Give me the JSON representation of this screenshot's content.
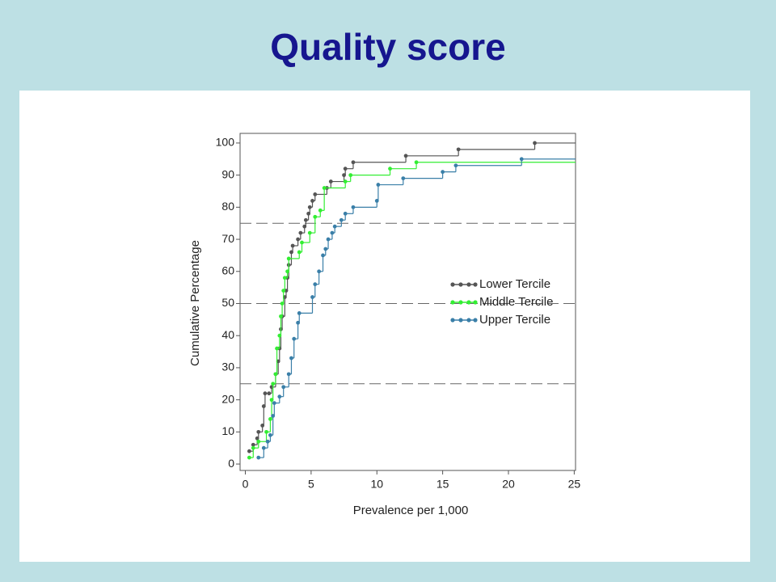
{
  "chart_data": {
    "type": "step",
    "title": "Quality score",
    "x_label": "Prevalence per 1,000",
    "y_label": "Cumulative Percentage",
    "xlim": [
      -0.4,
      25.1
    ],
    "ylim": [
      -2,
      103
    ],
    "xticks": [
      0,
      5,
      10,
      15,
      20,
      25
    ],
    "yticks": [
      0,
      10,
      20,
      30,
      40,
      50,
      60,
      70,
      80,
      90,
      100
    ],
    "reference_lines": [
      25,
      50,
      75
    ],
    "legend": "right",
    "series": [
      {
        "name": "Lower Tercile",
        "color": "#555555",
        "x": [
          0.3,
          0.6,
          0.9,
          1.0,
          1.3,
          1.4,
          1.5,
          1.8,
          2.0,
          2.3,
          2.5,
          2.6,
          2.7,
          2.8,
          3.0,
          3.1,
          3.2,
          3.3,
          3.5,
          3.6,
          4.0,
          4.2,
          4.5,
          4.6,
          4.8,
          4.9,
          5.1,
          5.3,
          6.2,
          6.5,
          7.5,
          7.6,
          8.2,
          12.2,
          16.2,
          22
        ],
        "values": [
          4,
          6,
          8,
          10,
          12,
          18,
          22,
          22,
          24,
          28,
          32,
          36,
          42,
          46,
          52,
          54,
          58,
          62,
          66,
          68,
          70,
          72,
          74,
          76,
          78,
          80,
          82,
          84,
          86,
          88,
          90,
          92,
          94,
          96,
          98,
          100
        ]
      },
      {
        "name": "Middle Tercile",
        "color": "#33ee33",
        "x": [
          0.3,
          0.6,
          1.0,
          1.6,
          1.9,
          2.0,
          2.1,
          2.3,
          2.4,
          2.6,
          2.7,
          2.8,
          2.9,
          3.0,
          3.2,
          3.3,
          4.1,
          4.3,
          4.9,
          5.3,
          5.7,
          6.0,
          7.6,
          8.0,
          11,
          13
        ],
        "values": [
          2,
          5,
          7,
          10,
          14,
          20,
          25,
          28,
          36,
          40,
          46,
          50,
          54,
          58,
          60,
          64,
          66,
          69,
          72,
          77,
          79,
          86,
          88,
          90,
          92,
          94
        ]
      },
      {
        "name": "Upper Tercile",
        "color": "#3a7fa8",
        "x": [
          1.0,
          1.4,
          1.7,
          1.9,
          2.1,
          2.2,
          2.6,
          2.9,
          3.3,
          3.5,
          3.7,
          4.0,
          4.1,
          5.1,
          5.3,
          5.6,
          5.9,
          6.1,
          6.3,
          6.6,
          6.8,
          7.3,
          7.6,
          8.2,
          10.0,
          10.1,
          12.0,
          15.0,
          16.0,
          21
        ],
        "values": [
          2,
          5,
          7,
          9,
          15,
          19,
          21,
          24,
          28,
          33,
          39,
          44,
          47,
          52,
          56,
          60,
          65,
          67,
          70,
          72,
          74,
          76,
          78,
          80,
          82,
          87,
          89,
          91,
          93,
          95
        ]
      }
    ]
  }
}
